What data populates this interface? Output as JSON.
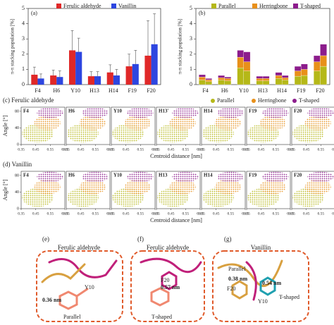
{
  "chart_data": [
    {
      "type": "bar",
      "title": "(a)",
      "ylabel": "π-π stacking population [%]",
      "categories": [
        "F4",
        "H6",
        "Y10",
        "H13",
        "H14",
        "F19",
        "F20"
      ],
      "series": [
        {
          "name": "Ferulic aldehyde",
          "color": "#e02828",
          "values": [
            0.65,
            0.6,
            2.25,
            0.55,
            0.8,
            1.2,
            1.9
          ],
          "errors": [
            0.5,
            0.35,
            1.3,
            0.3,
            0.5,
            0.8,
            2.3
          ]
        },
        {
          "name": "Vanillin",
          "color": "#2d46e0",
          "values": [
            0.4,
            0.5,
            2.15,
            0.55,
            0.6,
            1.35,
            2.65
          ],
          "errors": [
            0.3,
            0.4,
            0.9,
            0.3,
            0.4,
            0.9,
            2.0
          ]
        }
      ],
      "ylim": [
        0,
        5
      ],
      "yticks": [
        0,
        1,
        2,
        3,
        4,
        5
      ]
    },
    {
      "type": "stacked-bar",
      "title": "(b)",
      "ylabel": "π-π stacking population [%]",
      "categories": [
        "F4",
        "H6",
        "Y10",
        "H13",
        "H14",
        "F19",
        "F20"
      ],
      "series": [
        {
          "name": "Parallel",
          "color": "#b5b818",
          "values": [
            [
              0.3,
              0.2
            ],
            [
              0.3,
              0.25
            ],
            [
              1.1,
              0.9
            ],
            [
              0.25,
              0.25
            ],
            [
              0.4,
              0.3
            ],
            [
              0.55,
              0.6
            ],
            [
              0.9,
              1.2
            ]
          ]
        },
        {
          "name": "Herringbone",
          "color": "#e8901a",
          "values": [
            [
              0.2,
              0.12
            ],
            [
              0.15,
              0.15
            ],
            [
              0.7,
              0.6
            ],
            [
              0.15,
              0.15
            ],
            [
              0.2,
              0.15
            ],
            [
              0.35,
              0.4
            ],
            [
              0.6,
              0.7
            ]
          ]
        },
        {
          "name": "T-shaped",
          "color": "#8c1c8c",
          "values": [
            [
              0.15,
              0.08
            ],
            [
              0.15,
              0.1
            ],
            [
              0.45,
              0.65
            ],
            [
              0.15,
              0.15
            ],
            [
              0.2,
              0.15
            ],
            [
              0.3,
              0.35
            ],
            [
              0.4,
              0.75
            ]
          ]
        }
      ],
      "ylim": [
        0,
        5
      ],
      "yticks": [
        0,
        1,
        2,
        3,
        4,
        5
      ]
    },
    {
      "type": "scatter",
      "title": "(c) Ferulic aldehyde",
      "xlabel": "Centroid distance [nm]",
      "ylabel": "Angle [°]",
      "panels": [
        "F4",
        "H6",
        "Y10",
        "H13'",
        "H14",
        "F19",
        "F20"
      ],
      "xlim": [
        0.35,
        0.65
      ],
      "xticks": [
        0.35,
        0.45,
        0.55,
        0.65
      ],
      "ylim": [
        0,
        90
      ],
      "yticks": [
        0,
        40,
        80
      ]
    },
    {
      "type": "scatter",
      "title": "(d) Vanillin",
      "xlabel": "Centroid distance [nm]",
      "ylabel": "Angle [°]",
      "panels": [
        "F4",
        "H6",
        "Y10",
        "H13",
        "H14",
        "F19",
        "F20"
      ],
      "xlim": [
        0.35,
        0.65
      ],
      "xticks": [
        0.35,
        0.45,
        0.55,
        0.65
      ],
      "ylim": [
        0,
        90
      ],
      "yticks": [
        0,
        40,
        80
      ]
    }
  ],
  "structures": [
    {
      "label": "(e)",
      "title": "Ferulic aldehyde",
      "texts": [
        "Y10",
        "0.36 nm",
        "Parallel"
      ]
    },
    {
      "label": "(f)",
      "title": "Ferulic aldehyde",
      "texts": [
        "F20",
        "0.57 nm",
        "T-shaped"
      ]
    },
    {
      "label": "(g)",
      "title": "Vanillin",
      "texts": [
        "Parallel",
        "0.38 nm",
        "0.54 nm",
        "F20",
        "Y10",
        "T-shaped"
      ]
    }
  ]
}
